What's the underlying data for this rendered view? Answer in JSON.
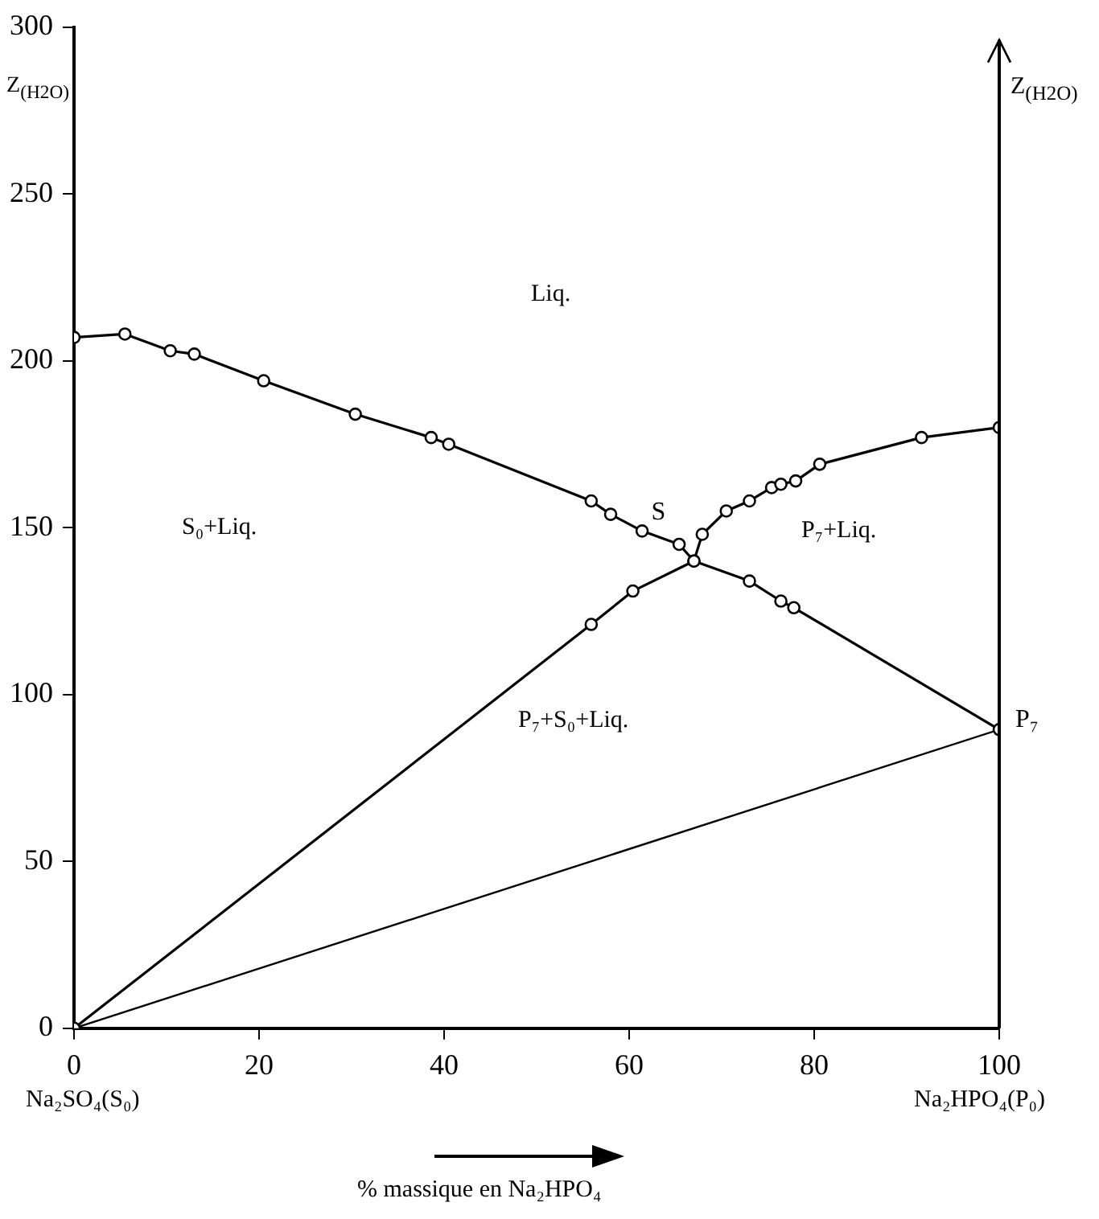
{
  "chart_data": {
    "type": "line",
    "xlabel": "% massique en Na₂HPO₄",
    "ylabel": "Z$_{(H2O)}$",
    "y2label": "Z$_{(H2O)}$",
    "xlim": [
      0,
      100
    ],
    "xticks": [
      0,
      20,
      40,
      60,
      80,
      100
    ],
    "ylim": [
      0,
      300
    ],
    "yticks": [
      0,
      50,
      100,
      150,
      200,
      250,
      300
    ],
    "grid": false,
    "legend": false,
    "series": [
      {
        "color": "#000000",
        "marker": "circle",
        "x": [
          0,
          5.5,
          10.4,
          13,
          20.5,
          30.4,
          38.6,
          40.5,
          55.9,
          58,
          61.4,
          65.4,
          67,
          73,
          76.4,
          77.8,
          100
        ],
        "values": [
          207,
          208,
          203,
          202,
          194,
          184,
          177,
          175,
          158,
          154,
          149,
          145,
          140,
          134,
          128,
          126,
          89.5
        ]
      },
      {
        "color": "#000000",
        "marker": "circle",
        "x": [
          0,
          55.9,
          60.4,
          67,
          67.9,
          70.5,
          73,
          75.4,
          76.4,
          78,
          80.6,
          91.6,
          100
        ],
        "values": [
          0,
          121,
          131,
          140,
          148,
          155,
          158,
          162,
          163,
          164,
          169,
          177,
          180
        ]
      },
      {
        "color": "#000000",
        "marker": "none",
        "x": [
          0,
          100
        ],
        "values": [
          0,
          89.5
        ]
      }
    ],
    "annotations": [
      "Liq.",
      "S₀+Liq.",
      "P₇+Liq.",
      "P₇+S₀+Liq.",
      {
        "text": "S",
        "x": 67,
        "y": 140
      },
      {
        "text": "P₇",
        "x": 100,
        "y": 89.5
      },
      "Na₂SO₄(S₀)",
      "Na₂HPO₄(P₀)"
    ]
  }
}
